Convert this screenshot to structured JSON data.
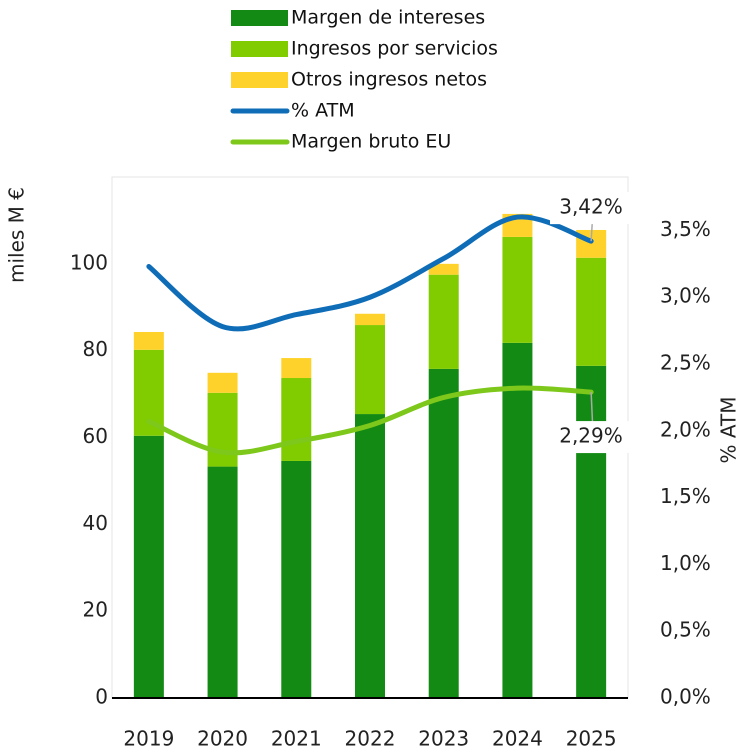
{
  "chart_data": {
    "type": "bar",
    "categories": [
      "2019",
      "2020",
      "2021",
      "2022",
      "2023",
      "2024",
      "2025"
    ],
    "series": [
      {
        "name": "Margen de intereses",
        "color": "#138a13",
        "kind": "bar",
        "values": [
          60.4,
          53.3,
          54.6,
          65.4,
          75.8,
          81.8,
          76.5
        ]
      },
      {
        "name": "Ingresos por servicios",
        "color": "#80cc00",
        "kind": "bar",
        "values": [
          19.8,
          17.0,
          19.1,
          20.5,
          21.7,
          24.4,
          24.9
        ]
      },
      {
        "name": "Otros ingresos netos",
        "color": "#ffd22b",
        "kind": "bar",
        "values": [
          4.1,
          4.6,
          4.6,
          2.6,
          2.5,
          5.3,
          6.4
        ]
      },
      {
        "name": "% ATM",
        "color": "#0f6db8",
        "kind": "line",
        "axis": "y2",
        "values": [
          3.23,
          2.78,
          2.87,
          3.0,
          3.29,
          3.6,
          3.42
        ],
        "value_labels": [
          null,
          null,
          null,
          null,
          null,
          null,
          "3,42%"
        ]
      },
      {
        "name": "Margen bruto EU",
        "color": "#7dc81a",
        "kind": "line",
        "axis": "y2",
        "values": [
          2.07,
          1.84,
          1.92,
          2.04,
          2.25,
          2.32,
          2.29
        ],
        "value_labels": [
          null,
          null,
          null,
          null,
          null,
          null,
          "2,29%"
        ]
      }
    ],
    "ylabel": "miles M €",
    "y2label": "% ATM",
    "ylim": [
      0,
      120
    ],
    "yticks": [
      0,
      20,
      40,
      60,
      80,
      100
    ],
    "y2lim": [
      0,
      3.9
    ],
    "y2ticks": [
      {
        "value": 0,
        "label": "0,0%"
      },
      {
        "value": 0.5,
        "label": "0,5%"
      },
      {
        "value": 1.0,
        "label": "1,0%"
      },
      {
        "value": 1.5,
        "label": "1,5%"
      },
      {
        "value": 2.0,
        "label": "2,0%"
      },
      {
        "value": 2.5,
        "label": "2,5%"
      },
      {
        "value": 3.0,
        "label": "3,0%"
      },
      {
        "value": 3.5,
        "label": "3,5%"
      }
    ],
    "legend": "top",
    "grid": false
  }
}
